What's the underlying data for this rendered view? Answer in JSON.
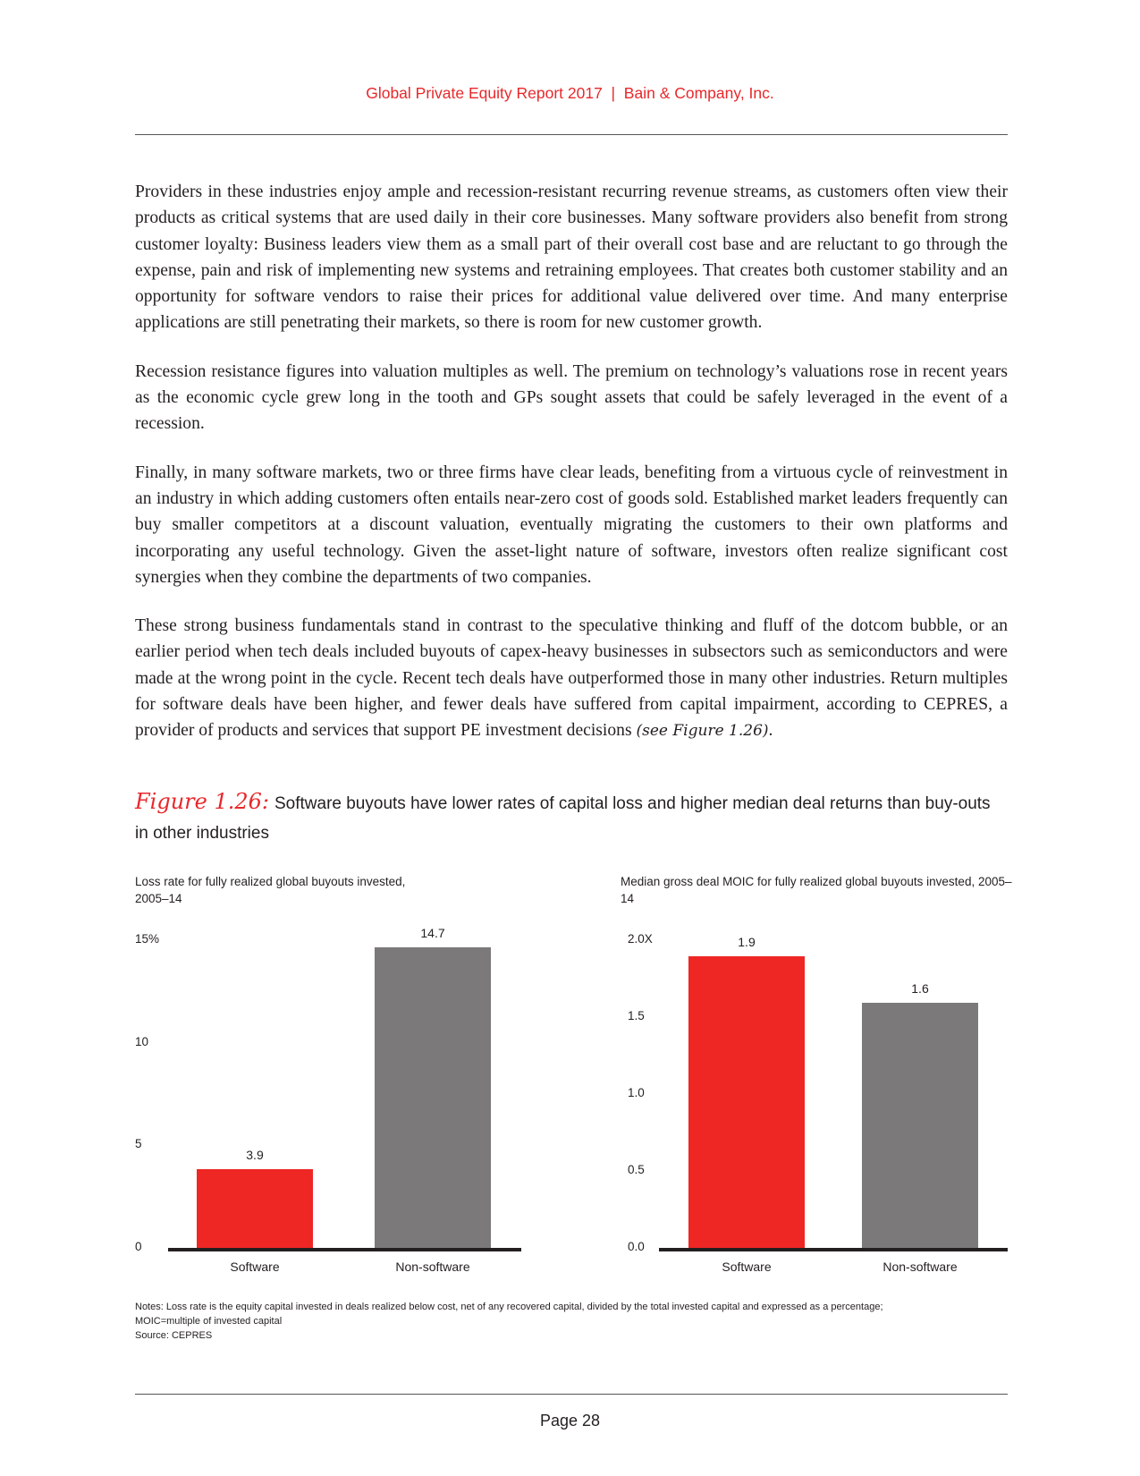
{
  "header": {
    "title": "Global Private Equity Report 2017  |  Bain & Company, Inc."
  },
  "body": {
    "paragraphs": [
      "Providers in these industries enjoy ample and recession-resistant recurring revenue streams, as customers often view their products as critical systems that are used daily in their core businesses. Many software providers also benefit from strong customer loyalty: Business leaders view them as a small part of their overall cost base and are reluctant to go through the expense, pain and risk of implementing new systems and retraining employees. That creates both customer stability and an opportunity for software vendors to raise their prices for additional value delivered over time. And many enterprise applications are still penetrating their markets, so there is room for new customer growth.",
      "Recession resistance figures into valuation multiples as well. The premium on technology’s valuations rose in recent years as the economic cycle grew long in the tooth and GPs sought assets that could be safely leveraged in the event of a recession.",
      "Finally, in many software markets, two or three firms have clear leads, benefiting from a virtuous cycle of reinvestment in an industry in which adding customers often entails near-zero cost of goods sold. Established market leaders frequently can buy smaller competitors at a discount valuation, eventually migrating the customers to their own platforms and incorporating any useful technology. Given the asset-light nature of software, investors often realize significant cost synergies when they combine the departments of two companies.",
      "These strong business fundamentals stand in contrast to the speculative thinking and fluff of the dotcom bubble, or an earlier period when tech deals included buyouts of capex-heavy businesses in subsectors such as semiconductors and were made at the wrong point in the cycle. Recent tech deals have outperformed those in many other industries. Return multiples for software deals have been higher, and fewer deals have suffered from capital impairment, according to CEPRES, a provider of products and services that support PE investment decisions"
    ],
    "figure_ref": "(see Figure 1.26)",
    "figure_ref_end": "."
  },
  "figure": {
    "number": "Figure 1.26:",
    "title": "Software buyouts have lower rates of capital loss and higher median deal returns than buy-outs in other industries"
  },
  "chart_data": [
    {
      "type": "bar",
      "title": "Loss rate for fully realized global buyouts invested, 2005–14",
      "categories": [
        "Software",
        "Non-software"
      ],
      "values": [
        3.9,
        14.7
      ],
      "value_labels": [
        "3.9",
        "14.7"
      ],
      "ylim": [
        0,
        15
      ],
      "yticks": [
        "0",
        "5",
        "10",
        "15%"
      ],
      "ytick_values": [
        0,
        5,
        10,
        15
      ],
      "colors": [
        "#ee2724",
        "#7b797a"
      ],
      "grid": false
    },
    {
      "type": "bar",
      "title": "Median gross deal MOIC for fully realized global buyouts invested, 2005–14",
      "categories": [
        "Software",
        "Non-software"
      ],
      "values": [
        1.9,
        1.6
      ],
      "value_labels": [
        "1.9",
        "1.6"
      ],
      "ylim": [
        0,
        2.0
      ],
      "yticks": [
        "0.0",
        "0.5",
        "1.0",
        "1.5",
        "2.0X"
      ],
      "ytick_values": [
        0,
        0.5,
        1.0,
        1.5,
        2.0
      ],
      "colors": [
        "#ee2724",
        "#7b797a"
      ],
      "grid": false
    }
  ],
  "notes": {
    "text": "Notes: Loss rate is the equity capital invested in deals realized below cost, net of any recovered capital, divided by the total invested capital and expressed as a percentage; MOIC=multiple of invested capital",
    "source": "Source: CEPRES"
  },
  "footer": {
    "page": "Page 28"
  }
}
